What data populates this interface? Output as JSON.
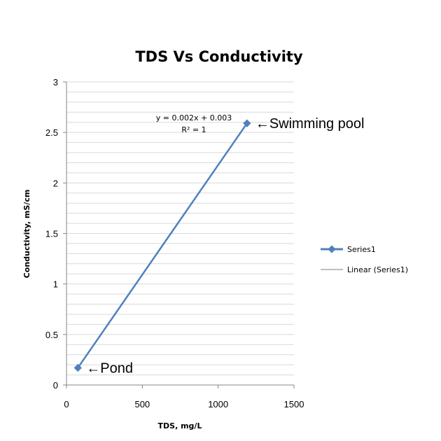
{
  "chart_data": {
    "type": "scatter",
    "title": "TDS Vs Conductivity",
    "xlabel": "TDS, mg/L",
    "ylabel": "Conductivity, mS/cm",
    "xlim": [
      0,
      1500
    ],
    "ylim": [
      0,
      3
    ],
    "x_ticks": [
      0,
      500,
      1000,
      1500
    ],
    "y_ticks": [
      0,
      0.5,
      1,
      1.5,
      2,
      2.5,
      3
    ],
    "x_tick_labels": [
      "0",
      "500",
      "1000",
      "1500"
    ],
    "y_tick_labels": [
      "0",
      "0.5",
      "1",
      "1.5",
      "2",
      "2.5",
      "3"
    ],
    "grid": true,
    "legend_position": "right",
    "series": [
      {
        "name": "Series1",
        "x": [
          75,
          1190
        ],
        "y": [
          0.17,
          2.59
        ],
        "color": "#4f81bd"
      }
    ],
    "trendline": {
      "name": "Linear (Series1)",
      "color": "#7f7f7f",
      "equation": "y = 0.002x + 0.003",
      "r_squared": "R² = 1"
    },
    "annotations": [
      {
        "text": "Pond",
        "x": 75,
        "y": 0.17
      },
      {
        "text": "Swimming pool",
        "x": 1190,
        "y": 2.59
      }
    ],
    "arrow_glyph": "←"
  }
}
